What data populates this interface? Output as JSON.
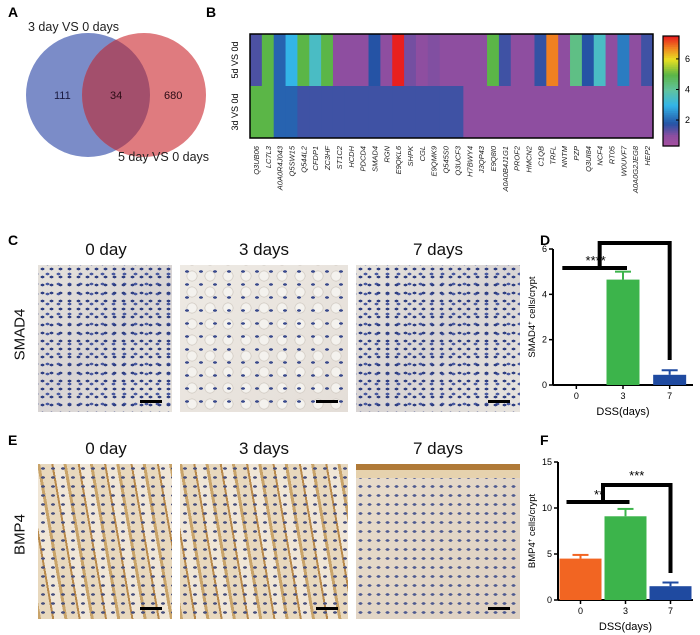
{
  "panels": {
    "a": "A",
    "b": "B",
    "c": "C",
    "d": "D",
    "e": "E",
    "f": "F"
  },
  "venn": {
    "set1_label": "3 day VS 0 days",
    "set2_label": "5 day VS 0 days",
    "only1": "111",
    "both": "34",
    "only2": "680",
    "colors": {
      "set1": "#7b8cc8",
      "set2": "#df7b7f",
      "overlap": "#a34f6c"
    }
  },
  "staining": {
    "headings": [
      "0 day",
      "3 days",
      "7 days"
    ],
    "rows": [
      "SMAD4",
      "BMP4"
    ]
  },
  "chart_data": [
    {
      "type": "heatmap",
      "rows": [
        "5d VS 0d",
        "3d VS 0d"
      ],
      "columns": [
        "Q3UB06",
        "LC7L3",
        "A0A0R4J043",
        "Q5SW15",
        "Q544L2",
        "CFDP1",
        "ZC3HF",
        "ST1C2",
        "HCDH",
        "PDCD4",
        "SMAD4",
        "RGN",
        "E9QKL6",
        "SHPK",
        "CGL",
        "E9QMK9",
        "Q545S0",
        "Q3UCF3",
        "H7BWY4",
        "J3QP43",
        "E9Q8I0",
        "A0A0B4J1G1",
        "PROF2",
        "HMCN2",
        "C1QB",
        "TRFL",
        "NNTM",
        "PZP",
        "Q3UI84",
        "NCF4",
        "RT05",
        "W0UVF7",
        "A0A0G2JEG8",
        "HEP2"
      ],
      "values": [
        [
          1.5,
          5,
          2,
          3,
          5,
          3.5,
          5,
          1,
          1,
          1,
          1.8,
          1,
          7.5,
          1.2,
          1,
          1.1,
          1,
          1,
          1,
          1,
          5,
          1.6,
          1,
          1,
          1.7,
          6.8,
          1,
          4.3,
          1.8,
          3.5,
          1,
          2.3,
          1,
          1.6
        ],
        [
          5,
          5,
          2,
          2,
          1.6,
          1.6,
          1.6,
          1.6,
          1.6,
          1.6,
          1.6,
          1.6,
          1.6,
          1.6,
          1.6,
          1.6,
          1.6,
          1.6,
          1,
          1,
          1,
          1,
          1,
          1,
          1,
          1,
          1,
          1,
          1,
          1,
          1,
          1,
          1,
          1
        ]
      ],
      "colorbar": {
        "ticks": [
          2,
          4,
          6
        ],
        "range": [
          0.3,
          7.5
        ],
        "colormap": "purple-blue-cyan-green-yellow-red"
      }
    },
    {
      "type": "bar",
      "categories": [
        "0",
        "3",
        "7"
      ],
      "values": [
        0,
        4.65,
        0.45
      ],
      "errors": [
        0,
        0.35,
        0.2
      ],
      "colors": [
        "#f26522",
        "#3cb44b",
        "#1f4aa0"
      ],
      "xlabel": "DSS(days)",
      "ylabel": "SMAD4+ cells/crypt",
      "ylabel_main": "SMAD4",
      "ylabel_sup": "+",
      "ylabel_rest": " cells/crypt",
      "ylim": [
        0,
        6
      ],
      "yticks": [
        0,
        2,
        4,
        6
      ],
      "significance": [
        {
          "pair": [
            "0",
            "3"
          ],
          "label": "****"
        },
        {
          "pair": [
            "3",
            "7"
          ],
          "label": "***"
        }
      ]
    },
    {
      "type": "bar",
      "categories": [
        "0",
        "3",
        "7"
      ],
      "values": [
        4.5,
        9.1,
        1.5
      ],
      "errors": [
        0.4,
        0.8,
        0.4
      ],
      "colors": [
        "#f26522",
        "#3cb44b",
        "#1f4aa0"
      ],
      "xlabel": "DSS(days)",
      "ylabel": "BMP4+ cells/crypt",
      "ylabel_main": "BMP4",
      "ylabel_sup": "+",
      "ylabel_rest": " cells/crypt",
      "ylim": [
        0,
        15
      ],
      "yticks": [
        0,
        5,
        10,
        15
      ],
      "significance": [
        {
          "pair": [
            "0",
            "3"
          ],
          "label": "**"
        },
        {
          "pair": [
            "3",
            "7"
          ],
          "label": "***"
        }
      ]
    }
  ]
}
